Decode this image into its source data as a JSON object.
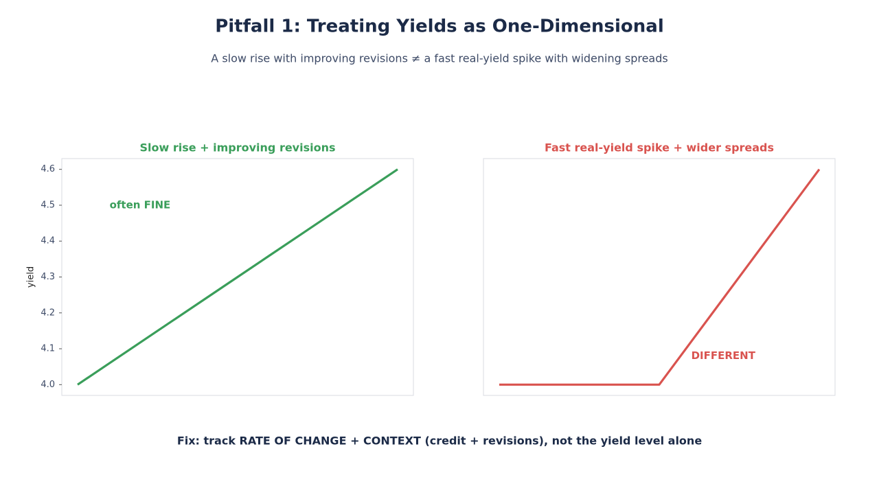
{
  "title": "Pitfall 1: Treating Yields as One-Dimensional",
  "subtitle": "A slow rise with improving revisions ≠ a fast real-yield spike with widening spreads",
  "footer": "Fix: track RATE OF CHANGE + CONTEXT (credit + revisions), not the yield level alone",
  "chart_data": [
    {
      "type": "line",
      "title": "Slow rise + improving revisions",
      "ylabel": "yield",
      "values": [
        4.0,
        4.06,
        4.12,
        4.18,
        4.24,
        4.3,
        4.36,
        4.42,
        4.48,
        4.54,
        4.6
      ],
      "color": "#3a9e5a",
      "ylim": [
        3.97,
        4.63
      ],
      "yticks": [
        {
          "value": 4,
          "label": "4.0"
        },
        4.1,
        4.2,
        4.3,
        4.4,
        4.5,
        4.6
      ],
      "annotation": "often FINE",
      "annotation_at": [
        1,
        4.5
      ]
    },
    {
      "type": "line",
      "title": "Fast real-yield spike + wider spreads",
      "values": [
        4.0,
        4.0,
        4.0,
        4.0,
        4.0,
        4.0,
        4.12,
        4.24,
        4.36,
        4.48,
        4.6
      ],
      "color": "#d9534f",
      "ylim": [
        3.97,
        4.63
      ],
      "annotation": "DIFFERENT",
      "annotation_at": [
        6,
        4.08
      ]
    }
  ]
}
